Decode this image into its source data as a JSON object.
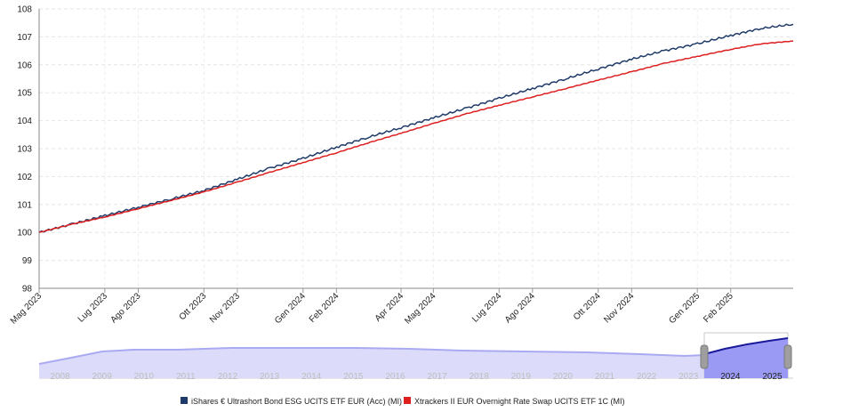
{
  "chart_data": {
    "type": "line",
    "y_ticks": [
      98,
      99,
      100,
      101,
      102,
      103,
      104,
      105,
      106,
      107,
      108
    ],
    "ylim": [
      98,
      108
    ],
    "x_range": [
      "2023-05-01",
      "2025-03-31"
    ],
    "x_ticks": [
      {
        "date": "2023-05-01",
        "label": "Mag 2023"
      },
      {
        "date": "2023-07-01",
        "label": "Lug 2023"
      },
      {
        "date": "2023-08-01",
        "label": "Ago 2023"
      },
      {
        "date": "2023-10-01",
        "label": "Ott 2023"
      },
      {
        "date": "2023-11-01",
        "label": "Nov 2023"
      },
      {
        "date": "2024-01-01",
        "label": "Gen 2024"
      },
      {
        "date": "2024-02-01",
        "label": "Feb 2024"
      },
      {
        "date": "2024-04-01",
        "label": "Apr 2024"
      },
      {
        "date": "2024-05-01",
        "label": "Mag 2024"
      },
      {
        "date": "2024-07-01",
        "label": "Lug 2024"
      },
      {
        "date": "2024-08-01",
        "label": "Ago 2024"
      },
      {
        "date": "2024-10-01",
        "label": "Ott 2024"
      },
      {
        "date": "2024-11-01",
        "label": "Nov 2024"
      },
      {
        "date": "2025-01-01",
        "label": "Gen 2025"
      },
      {
        "date": "2025-02-01",
        "label": "Feb 2025"
      }
    ],
    "grid": true,
    "legend_position": "bottom-center",
    "series": [
      {
        "name": "iShares € Ultrashort Bond ESG UCITS ETF EUR (Acc) (MI)",
        "color": "#1f3a68",
        "points": [
          [
            "2023-05-01",
            100.0
          ],
          [
            "2023-06-01",
            100.3
          ],
          [
            "2023-07-01",
            100.6
          ],
          [
            "2023-08-01",
            100.9
          ],
          [
            "2023-09-01",
            101.2
          ],
          [
            "2023-10-01",
            101.5
          ],
          [
            "2023-11-01",
            101.9
          ],
          [
            "2023-12-01",
            102.3
          ],
          [
            "2024-01-01",
            102.65
          ],
          [
            "2024-02-01",
            103.05
          ],
          [
            "2024-03-01",
            103.4
          ],
          [
            "2024-04-01",
            103.75
          ],
          [
            "2024-05-01",
            104.1
          ],
          [
            "2024-06-01",
            104.45
          ],
          [
            "2024-07-01",
            104.8
          ],
          [
            "2024-08-01",
            105.15
          ],
          [
            "2024-09-01",
            105.5
          ],
          [
            "2024-10-01",
            105.85
          ],
          [
            "2024-11-01",
            106.2
          ],
          [
            "2024-12-01",
            106.5
          ],
          [
            "2025-01-01",
            106.75
          ],
          [
            "2025-02-01",
            107.05
          ],
          [
            "2025-03-01",
            107.3
          ],
          [
            "2025-03-31",
            107.45
          ]
        ]
      },
      {
        "name": "Xtrackers II EUR Overnight Rate Swap UCITS ETF 1C (MI)",
        "color": "#dd1f1f",
        "points": [
          [
            "2023-05-01",
            100.0
          ],
          [
            "2023-06-01",
            100.3
          ],
          [
            "2023-07-01",
            100.55
          ],
          [
            "2023-08-01",
            100.85
          ],
          [
            "2023-09-01",
            101.15
          ],
          [
            "2023-10-01",
            101.45
          ],
          [
            "2023-11-01",
            101.8
          ],
          [
            "2023-12-01",
            102.15
          ],
          [
            "2024-01-01",
            102.5
          ],
          [
            "2024-02-01",
            102.85
          ],
          [
            "2024-03-01",
            103.2
          ],
          [
            "2024-04-01",
            103.55
          ],
          [
            "2024-05-01",
            103.9
          ],
          [
            "2024-06-01",
            104.25
          ],
          [
            "2024-07-01",
            104.55
          ],
          [
            "2024-08-01",
            104.85
          ],
          [
            "2024-09-01",
            105.15
          ],
          [
            "2024-10-01",
            105.45
          ],
          [
            "2024-11-01",
            105.75
          ],
          [
            "2024-12-01",
            106.05
          ],
          [
            "2025-01-01",
            106.3
          ],
          [
            "2025-02-01",
            106.55
          ],
          [
            "2025-03-01",
            106.75
          ],
          [
            "2025-03-31",
            106.85
          ]
        ]
      }
    ],
    "navigator": {
      "years": [
        "2008",
        "2009",
        "2010",
        "2011",
        "2012",
        "2013",
        "2014",
        "2015",
        "2016",
        "2017",
        "2018",
        "2019",
        "2020",
        "2021",
        "2022",
        "2023",
        "2024",
        "2025"
      ],
      "selected_years": [
        "2024",
        "2025"
      ]
    }
  }
}
